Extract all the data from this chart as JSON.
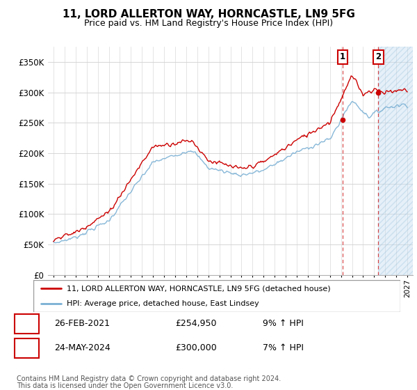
{
  "title": "11, LORD ALLERTON WAY, HORNCASTLE, LN9 5FG",
  "subtitle": "Price paid vs. HM Land Registry's House Price Index (HPI)",
  "legend_line1": "11, LORD ALLERTON WAY, HORNCASTLE, LN9 5FG (detached house)",
  "legend_line2": "HPI: Average price, detached house, East Lindsey",
  "footer1": "Contains HM Land Registry data © Crown copyright and database right 2024.",
  "footer2": "This data is licensed under the Open Government Licence v3.0.",
  "annotation1_label": "1",
  "annotation1_date": "26-FEB-2021",
  "annotation1_price": "£254,950",
  "annotation1_hpi": "9% ↑ HPI",
  "annotation2_label": "2",
  "annotation2_date": "24-MAY-2024",
  "annotation2_price": "£300,000",
  "annotation2_hpi": "7% ↑ HPI",
  "hpi_color": "#7ab0d4",
  "price_color": "#cc0000",
  "annotation_box_color": "#cc0000",
  "shade_color": "#c8dff0",
  "ylim": [
    0,
    375000
  ],
  "yticks": [
    0,
    50000,
    100000,
    150000,
    200000,
    250000,
    300000,
    350000
  ],
  "ytick_labels": [
    "£0",
    "£50K",
    "£100K",
    "£150K",
    "£200K",
    "£250K",
    "£300K",
    "£350K"
  ],
  "sale1_x": 2021.15,
  "sale1_y": 254950,
  "sale2_x": 2024.38,
  "sale2_y": 300000,
  "xmin": 1994.5,
  "xmax": 2027.5
}
